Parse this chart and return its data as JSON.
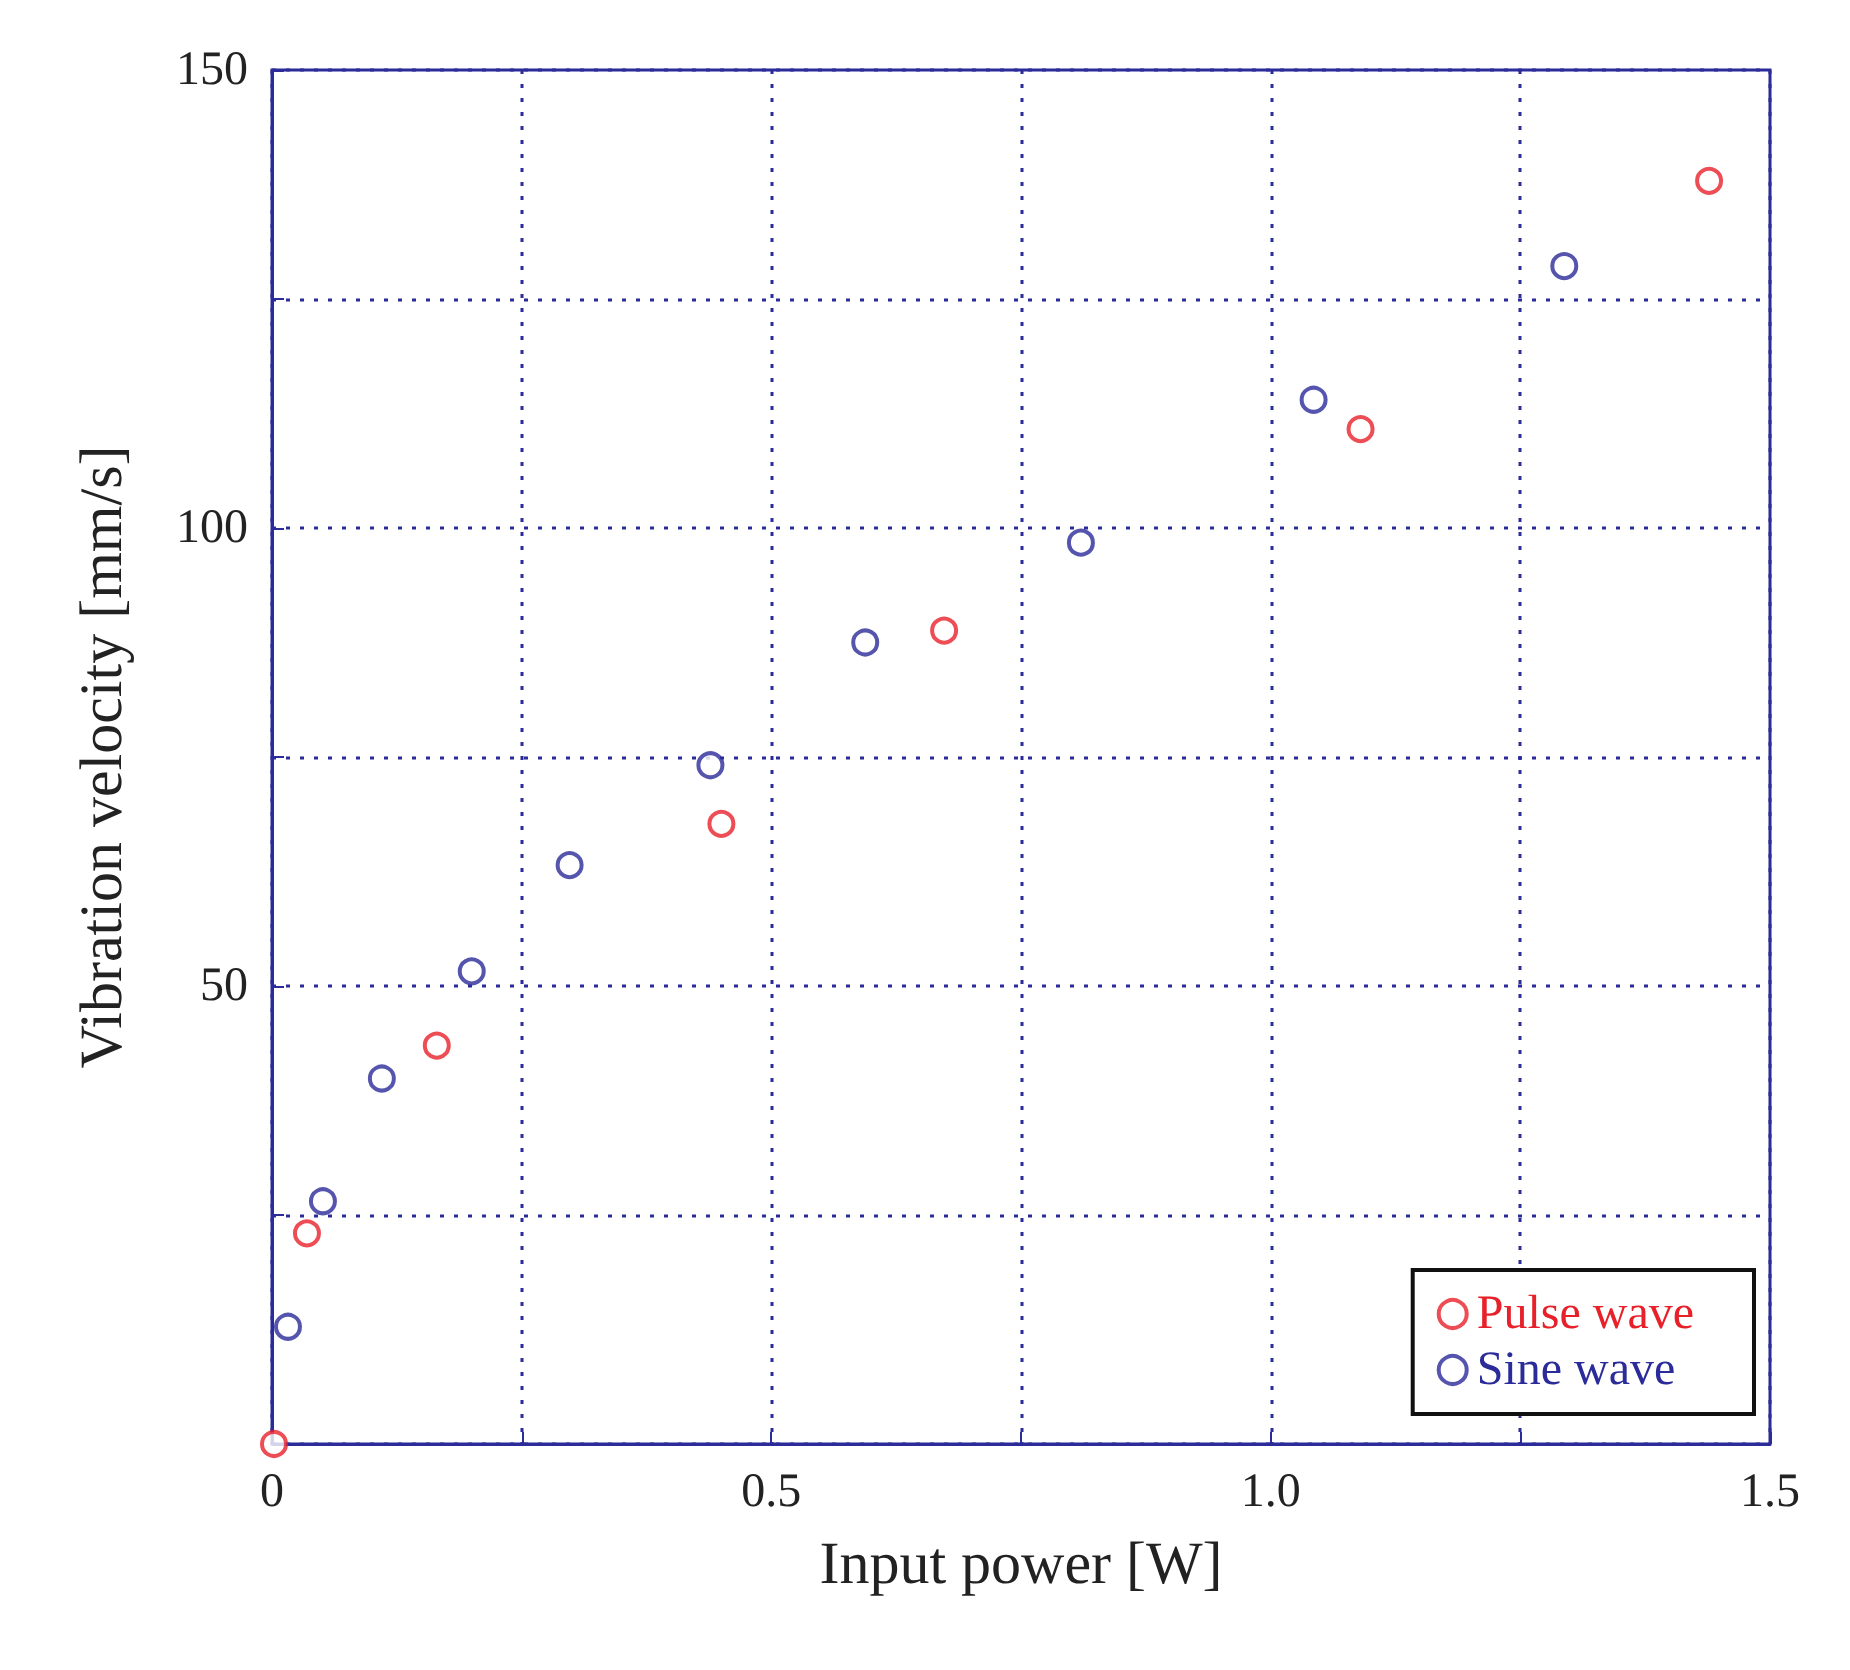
{
  "chart_data": {
    "type": "scatter",
    "xlabel": "Input power [W]",
    "ylabel": "Vibration velocity [mm/s]",
    "xlim": [
      0,
      1.5
    ],
    "ylim": [
      0,
      150
    ],
    "xticks": [
      0,
      {
        "value": 0.25,
        "label": null
      },
      0.5,
      {
        "value": 0.75,
        "label": null
      },
      {
        "value": 1,
        "label": "1.0"
      },
      {
        "value": 1.25,
        "label": null
      },
      1.5
    ],
    "yticks": [
      {
        "value": 0,
        "label": null
      },
      {
        "value": 25,
        "label": null
      },
      50,
      {
        "value": 75,
        "label": null
      },
      100,
      {
        "value": 125,
        "label": null
      },
      150
    ],
    "grid": true,
    "legend": "bottom right",
    "marker": "circle",
    "series": [
      {
        "name": "Pulse wave",
        "color": "#e8202a",
        "x": [
          0.002,
          0.035,
          0.165,
          0.45,
          0.673,
          1.09,
          1.439
        ],
        "values": [
          0,
          23,
          43.5,
          67.7,
          88.8,
          110.8,
          137.9
        ]
      },
      {
        "name": "Sine wave",
        "color": "#2b2b9a",
        "x": [
          0.016,
          0.051,
          0.11,
          0.2,
          0.298,
          0.439,
          0.594,
          0.81,
          1.043,
          1.294
        ],
        "values": [
          12.8,
          26.5,
          39.9,
          51.6,
          63.2,
          74.1,
          87.5,
          98.4,
          114,
          128.6
        ]
      }
    ]
  }
}
